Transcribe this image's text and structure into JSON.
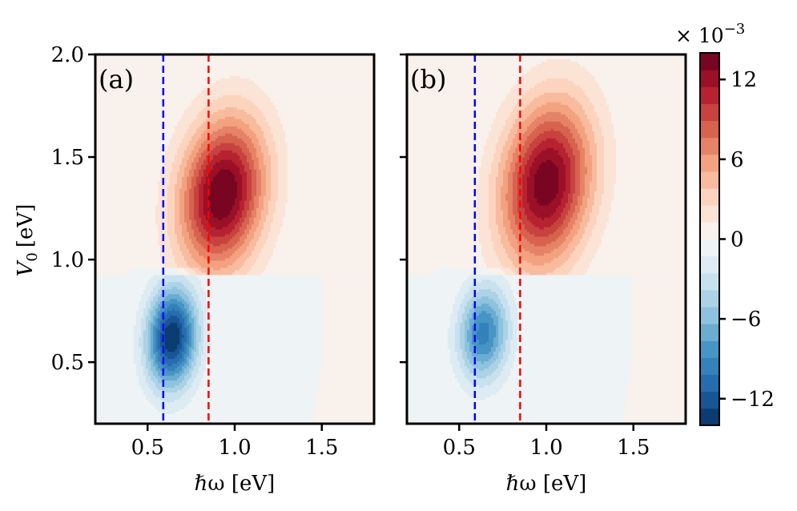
{
  "chart_data": {
    "type": "heatmap",
    "subtype": "filled-contour",
    "colormap": "RdBu_r",
    "panels": [
      {
        "label": "(a)",
        "xlabel": "ℏω [eV]",
        "ylabel": "V",
        "ylabel_sub": "0",
        "ylabel_unit": "[eV]",
        "xlim": [
          0.2,
          1.8
        ],
        "ylim": [
          0.2,
          2.0
        ],
        "xticks": [
          0.5,
          1.0,
          1.5
        ],
        "xticklabels": [
          "0.5",
          "1.0",
          "1.5"
        ],
        "yticks": [
          0.5,
          1.0,
          1.5,
          2.0
        ],
        "yticklabels": [
          "0.5",
          "1.0",
          "1.5",
          "2.0"
        ],
        "peaks": [
          {
            "x0": 0.93,
            "y0": 1.32,
            "sx": 0.17,
            "sy": 0.26,
            "amp": 14.2,
            "skew_x": 0.12,
            "ymin": 0.93
          },
          {
            "x0": 0.64,
            "y0": 0.62,
            "sx": 0.1,
            "sy": 0.17,
            "amp": -14.0,
            "skew_x": 0.05,
            "ymax": 0.96
          }
        ]
      },
      {
        "label": "(b)",
        "xlabel": "ℏω [eV]",
        "xlim": [
          0.2,
          1.8
        ],
        "ylim": [
          0.2,
          2.0
        ],
        "xticks": [
          0.5,
          1.0,
          1.5
        ],
        "xticklabels": [
          "0.5",
          "1.0",
          "1.5"
        ],
        "yticks": [
          0.5,
          1.0,
          1.5,
          2.0
        ],
        "yticklabels": [],
        "peaks": [
          {
            "x0": 1.0,
            "y0": 1.37,
            "sx": 0.18,
            "sy": 0.28,
            "amp": 13.8,
            "skew_x": 0.12,
            "ymin": 0.92
          },
          {
            "x0": 0.64,
            "y0": 0.64,
            "sx": 0.1,
            "sy": 0.16,
            "amp": -9.5,
            "skew_x": 0.05,
            "ymax": 0.96
          }
        ]
      }
    ],
    "vertical_lines": [
      {
        "x": 0.59,
        "color": "#0000ff",
        "style": "dashed"
      },
      {
        "x": 0.85,
        "color": "#ff0000",
        "style": "dashed"
      }
    ],
    "colorbar": {
      "scale_label": "× 10",
      "scale_exponent": "−3",
      "min": -14,
      "max": 14,
      "levels": 22,
      "ticks": [
        12,
        6,
        0,
        -6,
        -12
      ],
      "ticklabels": [
        "12",
        "6",
        "0",
        "−6",
        "−12"
      ]
    },
    "colors": [
      "#053061",
      "#2166ac",
      "#4393c3",
      "#92c5de",
      "#d1e5f0",
      "#f7f7f7",
      "#fddbc7",
      "#f4a582",
      "#d6604d",
      "#b2182b",
      "#67001f"
    ]
  }
}
